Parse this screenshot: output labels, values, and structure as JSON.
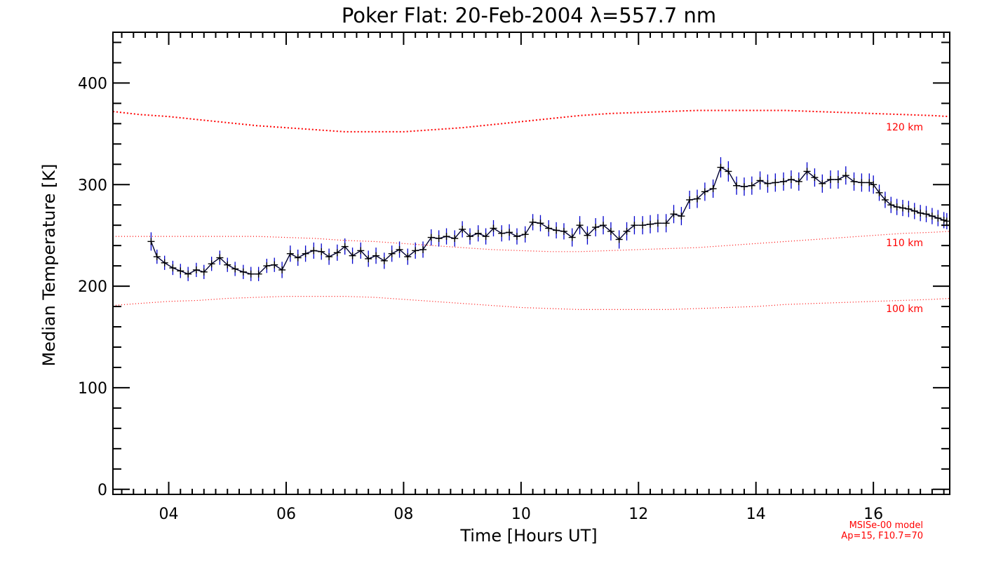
{
  "chart_data": {
    "type": "line",
    "title": "Poker Flat: 20-Feb-2004 λ=557.7 nm",
    "xlabel": "Time [Hours UT]",
    "ylabel": "Median Temperature [K]",
    "xlim": [
      3.05,
      17.3
    ],
    "ylim": [
      -5,
      450
    ],
    "x_ticks": [
      4,
      6,
      8,
      10,
      12,
      14,
      16
    ],
    "x_tick_labels": [
      "04",
      "06",
      "08",
      "10",
      "12",
      "14",
      "16"
    ],
    "y_ticks": [
      0,
      100,
      200,
      300,
      400
    ],
    "y_tick_labels": [
      "0",
      "100",
      "200",
      "300",
      "400"
    ],
    "grid": false,
    "measured": {
      "name": "Median temperature",
      "color": "#000033",
      "error_color": "#0000cc",
      "points": [
        [
          3.7,
          244,
          9
        ],
        [
          3.8,
          229,
          7
        ],
        [
          3.93,
          223,
          7
        ],
        [
          4.07,
          218,
          7
        ],
        [
          4.2,
          215,
          7
        ],
        [
          4.33,
          212,
          7
        ],
        [
          4.47,
          216,
          7
        ],
        [
          4.6,
          214,
          7
        ],
        [
          4.73,
          222,
          7
        ],
        [
          4.87,
          228,
          7
        ],
        [
          5.0,
          221,
          7
        ],
        [
          5.13,
          217,
          7
        ],
        [
          5.27,
          214,
          7
        ],
        [
          5.4,
          212,
          7
        ],
        [
          5.53,
          212,
          7
        ],
        [
          5.67,
          220,
          7
        ],
        [
          5.8,
          221,
          7
        ],
        [
          5.93,
          216,
          8
        ],
        [
          6.07,
          232,
          8
        ],
        [
          6.2,
          228,
          8
        ],
        [
          6.33,
          232,
          8
        ],
        [
          6.47,
          235,
          8
        ],
        [
          6.6,
          234,
          8
        ],
        [
          6.73,
          229,
          8
        ],
        [
          6.87,
          233,
          8
        ],
        [
          7.0,
          239,
          8
        ],
        [
          7.13,
          230,
          8
        ],
        [
          7.27,
          235,
          8
        ],
        [
          7.4,
          227,
          8
        ],
        [
          7.53,
          230,
          8
        ],
        [
          7.67,
          225,
          8
        ],
        [
          7.8,
          232,
          8
        ],
        [
          7.93,
          236,
          8
        ],
        [
          8.07,
          229,
          8
        ],
        [
          8.2,
          235,
          8
        ],
        [
          8.33,
          236,
          8
        ],
        [
          8.47,
          248,
          8
        ],
        [
          8.6,
          247,
          8
        ],
        [
          8.73,
          249,
          8
        ],
        [
          8.87,
          247,
          8
        ],
        [
          9.0,
          256,
          8
        ],
        [
          9.13,
          249,
          8
        ],
        [
          9.27,
          252,
          8
        ],
        [
          9.4,
          249,
          8
        ],
        [
          9.53,
          257,
          8
        ],
        [
          9.67,
          252,
          8
        ],
        [
          9.8,
          253,
          8
        ],
        [
          9.93,
          249,
          8
        ],
        [
          10.07,
          251,
          8
        ],
        [
          10.2,
          263,
          8
        ],
        [
          10.33,
          262,
          8
        ],
        [
          10.47,
          257,
          8
        ],
        [
          10.6,
          255,
          8
        ],
        [
          10.73,
          254,
          8
        ],
        [
          10.87,
          248,
          9
        ],
        [
          11.0,
          260,
          9
        ],
        [
          11.13,
          250,
          9
        ],
        [
          11.27,
          258,
          9
        ],
        [
          11.4,
          260,
          9
        ],
        [
          11.53,
          254,
          9
        ],
        [
          11.67,
          246,
          9
        ],
        [
          11.8,
          254,
          9
        ],
        [
          11.93,
          260,
          9
        ],
        [
          12.07,
          260,
          9
        ],
        [
          12.2,
          261,
          9
        ],
        [
          12.33,
          262,
          9
        ],
        [
          12.47,
          262,
          9
        ],
        [
          12.6,
          271,
          9
        ],
        [
          12.73,
          269,
          9
        ],
        [
          12.87,
          285,
          9
        ],
        [
          13.0,
          286,
          9
        ],
        [
          13.13,
          293,
          9
        ],
        [
          13.27,
          296,
          9
        ],
        [
          13.4,
          317,
          10
        ],
        [
          13.53,
          313,
          10
        ],
        [
          13.67,
          299,
          9
        ],
        [
          13.8,
          298,
          9
        ],
        [
          13.93,
          299,
          9
        ],
        [
          14.07,
          304,
          9
        ],
        [
          14.2,
          301,
          9
        ],
        [
          14.33,
          302,
          9
        ],
        [
          14.47,
          303,
          9
        ],
        [
          14.6,
          305,
          9
        ],
        [
          14.73,
          303,
          9
        ],
        [
          14.87,
          313,
          9
        ],
        [
          15.0,
          307,
          9
        ],
        [
          15.13,
          301,
          9
        ],
        [
          15.27,
          305,
          9
        ],
        [
          15.4,
          305,
          9
        ],
        [
          15.53,
          309,
          9
        ],
        [
          15.67,
          303,
          9
        ],
        [
          15.8,
          302,
          9
        ],
        [
          15.93,
          302,
          9
        ],
        [
          16.0,
          300,
          9
        ],
        [
          16.1,
          292,
          8
        ],
        [
          16.2,
          285,
          8
        ],
        [
          16.3,
          280,
          8
        ],
        [
          16.4,
          278,
          8
        ],
        [
          16.5,
          277,
          8
        ],
        [
          16.6,
          276,
          8
        ],
        [
          16.7,
          274,
          8
        ],
        [
          16.8,
          272,
          8
        ],
        [
          16.9,
          271,
          8
        ],
        [
          17.0,
          269,
          8
        ],
        [
          17.1,
          267,
          8
        ],
        [
          17.2,
          265,
          8
        ],
        [
          17.25,
          264,
          8
        ]
      ]
    },
    "model_series": [
      {
        "name": "120 km",
        "color": "#ff0000",
        "x": [
          3.05,
          3.5,
          4.0,
          4.5,
          5.0,
          5.5,
          6.0,
          6.5,
          7.0,
          7.5,
          8.0,
          8.5,
          9.0,
          9.5,
          10.0,
          10.5,
          11.0,
          11.5,
          12.0,
          12.5,
          13.0,
          13.5,
          14.0,
          14.5,
          15.0,
          15.5,
          16.0,
          16.5,
          17.0,
          17.3
        ],
        "y": [
          372,
          369,
          367,
          364,
          361,
          358,
          356,
          354,
          352,
          352,
          352,
          354,
          356,
          359,
          362,
          365,
          368,
          370,
          371,
          372,
          373,
          373,
          373,
          373,
          372,
          371,
          370,
          369,
          368,
          367
        ]
      },
      {
        "name": "110 km",
        "color": "#ff0000",
        "x": [
          3.05,
          3.5,
          4.0,
          4.5,
          5.0,
          5.5,
          6.0,
          6.5,
          7.0,
          7.5,
          8.0,
          8.5,
          9.0,
          9.5,
          10.0,
          10.5,
          11.0,
          11.5,
          12.0,
          12.5,
          13.0,
          13.5,
          14.0,
          14.5,
          15.0,
          15.5,
          16.0,
          16.5,
          17.0,
          17.3
        ],
        "y": [
          249,
          249,
          249,
          249,
          249,
          249,
          248,
          247,
          245,
          244,
          242,
          240,
          238,
          236,
          235,
          234,
          234,
          235,
          236,
          237,
          238,
          240,
          242,
          244,
          246,
          248,
          250,
          252,
          253,
          254
        ]
      },
      {
        "name": "100 km",
        "color": "#ff0000",
        "x": [
          3.05,
          3.5,
          4.0,
          4.5,
          5.0,
          5.5,
          6.0,
          6.5,
          7.0,
          7.5,
          8.0,
          8.5,
          9.0,
          9.5,
          10.0,
          10.5,
          11.0,
          11.5,
          12.0,
          12.5,
          13.0,
          13.5,
          14.0,
          14.5,
          15.0,
          15.5,
          16.0,
          16.5,
          17.0,
          17.3
        ],
        "y": [
          181,
          183,
          185,
          186,
          188,
          189,
          190,
          190,
          190,
          189,
          187,
          185,
          183,
          181,
          179,
          178,
          177,
          177,
          177,
          177,
          178,
          179,
          180,
          182,
          183,
          184,
          185,
          186,
          187,
          188
        ]
      }
    ],
    "annotations": [
      "MSISe-00 model",
      "Ap=15, F10.7=70"
    ]
  }
}
